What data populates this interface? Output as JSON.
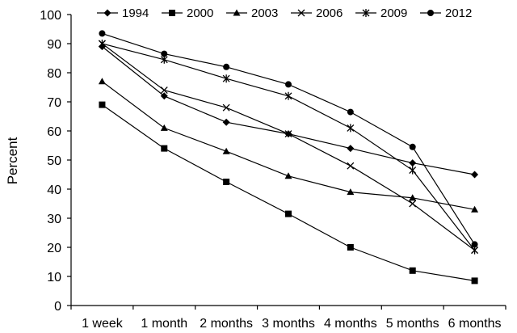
{
  "chart_data": {
    "type": "line",
    "title": "",
    "xlabel": "",
    "ylabel": "Percent",
    "ylim": [
      0,
      100
    ],
    "yticks": [
      0,
      10,
      20,
      30,
      40,
      50,
      60,
      70,
      80,
      90,
      100
    ],
    "grid": false,
    "legend_position": "top",
    "categories": [
      "1 week",
      "1 month",
      "2 months",
      "3 months",
      "4 months",
      "5 months",
      "6 months"
    ],
    "series": [
      {
        "name": "1994",
        "marker": "diamond",
        "values": [
          89,
          72,
          63,
          59,
          54,
          49,
          45
        ]
      },
      {
        "name": "2000",
        "marker": "square",
        "values": [
          69,
          54,
          42.5,
          31.5,
          20,
          12,
          8.5
        ]
      },
      {
        "name": "2003",
        "marker": "triangle",
        "values": [
          77,
          61,
          53,
          44.5,
          39,
          37,
          33
        ]
      },
      {
        "name": "2006",
        "marker": "x",
        "values": [
          90,
          74,
          68,
          59,
          48,
          35,
          19
        ]
      },
      {
        "name": "2009",
        "marker": "star",
        "values": [
          90,
          84.5,
          78,
          72,
          61,
          46.5,
          19
        ]
      },
      {
        "name": "2012",
        "marker": "circle",
        "values": [
          93.5,
          86.5,
          82,
          76,
          66.5,
          54.5,
          21
        ]
      }
    ]
  }
}
